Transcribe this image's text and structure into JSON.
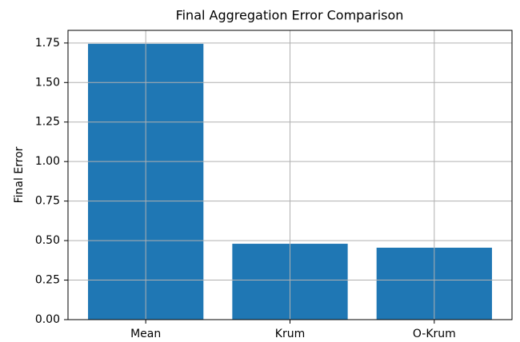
{
  "chart_data": {
    "type": "bar",
    "title": "Final Aggregation Error Comparison",
    "y_label": "Final Error",
    "categories": [
      "Mean",
      "Krum",
      "O-Krum"
    ],
    "values": [
      1.745,
      0.48,
      0.455
    ],
    "color": "#1f77b4",
    "ylim": [
      0,
      1.83
    ],
    "yticks": [
      {
        "value": 0,
        "label": "0.00"
      },
      {
        "value": 0.25,
        "label": "0.25"
      },
      {
        "value": 0.5,
        "label": "0.50"
      },
      {
        "value": 0.75,
        "label": "0.75"
      },
      {
        "value": 1.0,
        "label": "1.00"
      },
      {
        "value": 1.25,
        "label": "1.25"
      },
      {
        "value": 1.5,
        "label": "1.50"
      },
      {
        "value": 1.75,
        "label": "1.75"
      }
    ],
    "grid": true
  }
}
